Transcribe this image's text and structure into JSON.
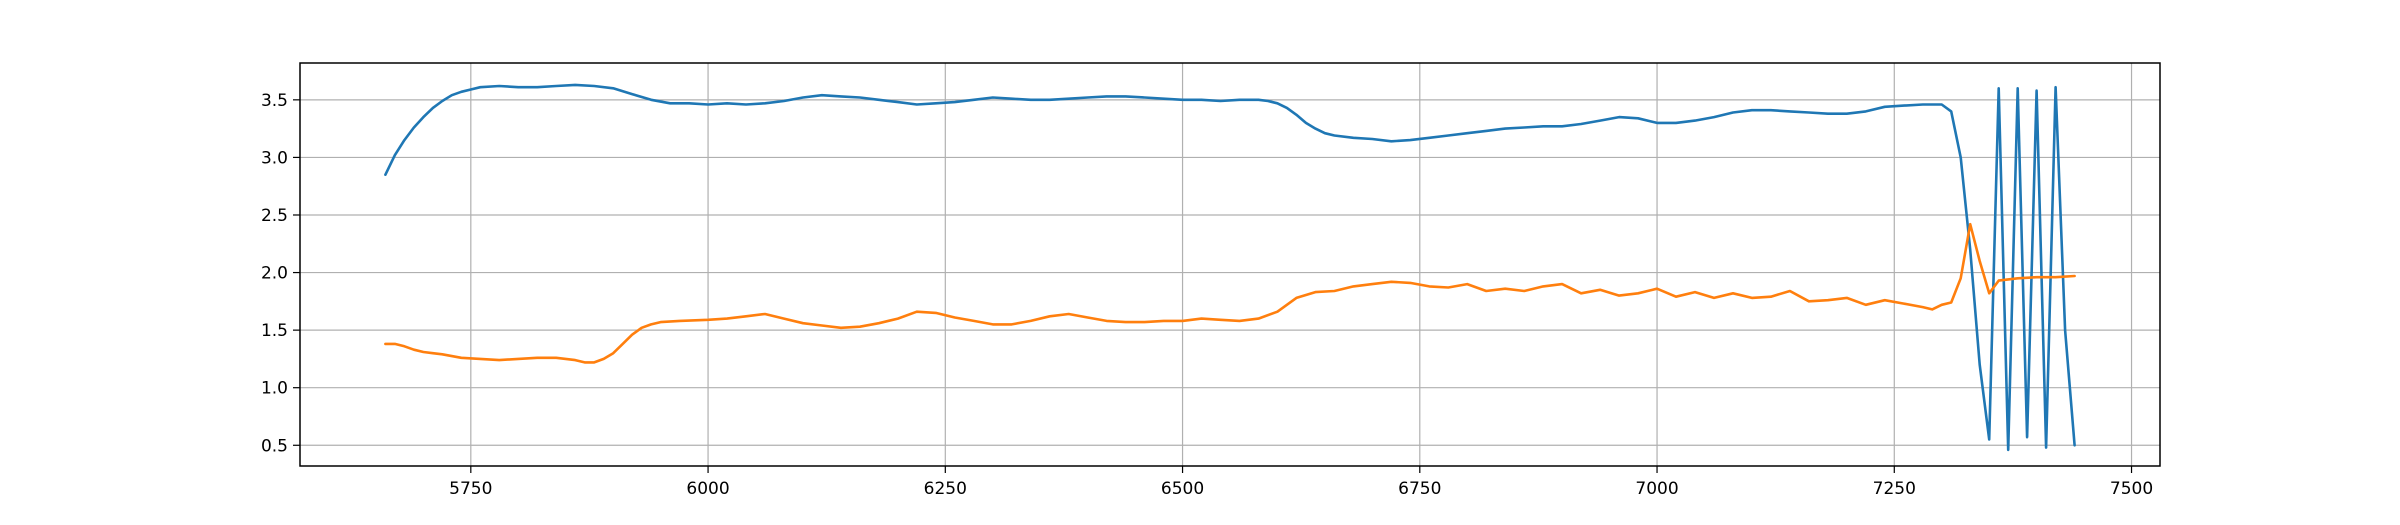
{
  "chart_data": {
    "type": "line",
    "title": "",
    "xlabel": "",
    "ylabel": "",
    "xlim": [
      5570,
      7530
    ],
    "ylim": [
      0.32,
      3.82
    ],
    "grid": true,
    "legend": "none",
    "x_ticks": [
      5750,
      6000,
      6250,
      6500,
      6750,
      7000,
      7250,
      7500
    ],
    "y_ticks": [
      0.5,
      1.0,
      1.5,
      2.0,
      2.5,
      3.0,
      3.5
    ],
    "x_tick_labels": [
      "5750",
      "6000",
      "6250",
      "6500",
      "6750",
      "7000",
      "7250",
      "7500"
    ],
    "y_tick_labels": [
      "0.5",
      "1.0",
      "1.5",
      "2.0",
      "2.5",
      "3.0",
      "3.5"
    ],
    "series": [
      {
        "color": "#1f77b4",
        "x": [
          5660,
          5670,
          5680,
          5690,
          5700,
          5710,
          5720,
          5730,
          5740,
          5750,
          5760,
          5780,
          5800,
          5820,
          5840,
          5860,
          5880,
          5900,
          5920,
          5940,
          5960,
          5980,
          6000,
          6020,
          6040,
          6060,
          6080,
          6100,
          6120,
          6140,
          6160,
          6180,
          6200,
          6220,
          6240,
          6260,
          6280,
          6300,
          6320,
          6340,
          6360,
          6380,
          6400,
          6420,
          6440,
          6460,
          6480,
          6500,
          6520,
          6540,
          6560,
          6580,
          6590,
          6600,
          6610,
          6620,
          6630,
          6640,
          6650,
          6660,
          6680,
          6700,
          6720,
          6740,
          6760,
          6780,
          6800,
          6820,
          6840,
          6860,
          6880,
          6900,
          6920,
          6940,
          6960,
          6980,
          7000,
          7020,
          7040,
          7060,
          7080,
          7100,
          7120,
          7140,
          7160,
          7180,
          7200,
          7220,
          7240,
          7260,
          7280,
          7300,
          7310,
          7320,
          7330,
          7340,
          7350,
          7360,
          7370,
          7380,
          7390,
          7400,
          7410,
          7420,
          7430,
          7440
        ],
        "y": [
          2.85,
          3.02,
          3.15,
          3.26,
          3.35,
          3.43,
          3.49,
          3.54,
          3.57,
          3.59,
          3.61,
          3.62,
          3.61,
          3.61,
          3.62,
          3.63,
          3.62,
          3.6,
          3.55,
          3.5,
          3.47,
          3.47,
          3.46,
          3.47,
          3.46,
          3.47,
          3.49,
          3.52,
          3.54,
          3.53,
          3.52,
          3.5,
          3.48,
          3.46,
          3.47,
          3.48,
          3.5,
          3.52,
          3.51,
          3.5,
          3.5,
          3.51,
          3.52,
          3.53,
          3.53,
          3.52,
          3.51,
          3.5,
          3.5,
          3.49,
          3.5,
          3.5,
          3.49,
          3.47,
          3.43,
          3.37,
          3.3,
          3.25,
          3.21,
          3.19,
          3.17,
          3.16,
          3.14,
          3.15,
          3.17,
          3.19,
          3.21,
          3.23,
          3.25,
          3.26,
          3.27,
          3.27,
          3.29,
          3.32,
          3.35,
          3.34,
          3.3,
          3.3,
          3.32,
          3.35,
          3.39,
          3.41,
          3.41,
          3.4,
          3.39,
          3.38,
          3.38,
          3.4,
          3.44,
          3.45,
          3.46,
          3.46,
          3.4,
          3.0,
          2.2,
          1.2,
          0.55,
          3.6,
          0.46,
          3.6,
          0.57,
          3.58,
          0.48,
          3.61,
          1.5,
          0.5
        ]
      },
      {
        "color": "#ff7f0e",
        "x": [
          5660,
          5670,
          5680,
          5690,
          5700,
          5710,
          5720,
          5740,
          5760,
          5780,
          5800,
          5820,
          5840,
          5860,
          5870,
          5880,
          5890,
          5900,
          5910,
          5920,
          5930,
          5940,
          5950,
          5970,
          6000,
          6020,
          6040,
          6060,
          6080,
          6100,
          6120,
          6140,
          6160,
          6180,
          6200,
          6220,
          6240,
          6260,
          6280,
          6300,
          6320,
          6340,
          6360,
          6380,
          6400,
          6420,
          6440,
          6460,
          6480,
          6500,
          6520,
          6540,
          6560,
          6580,
          6600,
          6620,
          6640,
          6660,
          6680,
          6700,
          6720,
          6740,
          6760,
          6780,
          6800,
          6820,
          6840,
          6860,
          6880,
          6900,
          6920,
          6940,
          6960,
          6980,
          7000,
          7020,
          7040,
          7060,
          7080,
          7100,
          7120,
          7140,
          7160,
          7180,
          7200,
          7220,
          7240,
          7260,
          7280,
          7290,
          7300,
          7310,
          7320,
          7330,
          7340,
          7350,
          7360,
          7380,
          7400,
          7420,
          7440
        ],
        "y": [
          1.38,
          1.38,
          1.36,
          1.33,
          1.31,
          1.3,
          1.29,
          1.26,
          1.25,
          1.24,
          1.25,
          1.26,
          1.26,
          1.24,
          1.22,
          1.22,
          1.25,
          1.3,
          1.38,
          1.46,
          1.52,
          1.55,
          1.57,
          1.58,
          1.59,
          1.6,
          1.62,
          1.64,
          1.6,
          1.56,
          1.54,
          1.52,
          1.53,
          1.56,
          1.6,
          1.66,
          1.65,
          1.61,
          1.58,
          1.55,
          1.55,
          1.58,
          1.62,
          1.64,
          1.61,
          1.58,
          1.57,
          1.57,
          1.58,
          1.58,
          1.6,
          1.59,
          1.58,
          1.6,
          1.66,
          1.78,
          1.83,
          1.84,
          1.88,
          1.9,
          1.92,
          1.91,
          1.88,
          1.87,
          1.9,
          1.84,
          1.86,
          1.84,
          1.88,
          1.9,
          1.82,
          1.85,
          1.8,
          1.82,
          1.86,
          1.79,
          1.83,
          1.78,
          1.82,
          1.78,
          1.79,
          1.84,
          1.75,
          1.76,
          1.78,
          1.72,
          1.76,
          1.73,
          1.7,
          1.68,
          1.72,
          1.74,
          1.95,
          2.42,
          2.1,
          1.82,
          1.93,
          1.95,
          1.96,
          1.96,
          1.97
        ]
      }
    ]
  }
}
